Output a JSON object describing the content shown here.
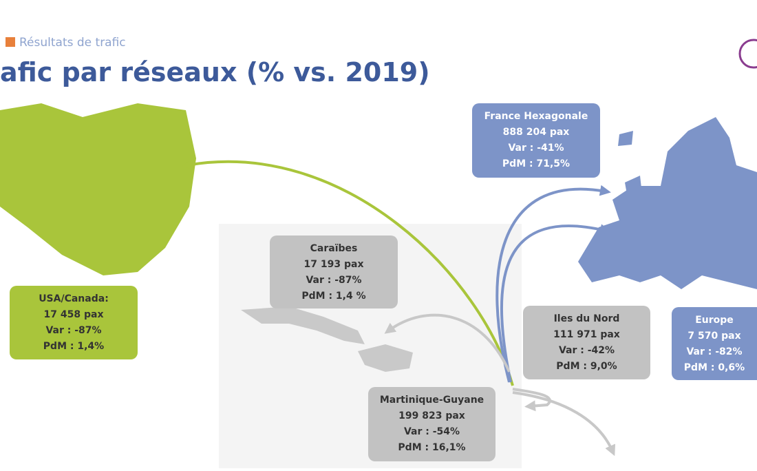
{
  "header": {
    "section": "Résultats de trafic",
    "title": "afic par réseaux (% vs. 2019)"
  },
  "boxes": [
    {
      "lines": [
        "USA/Canada:",
        "17 458 pax",
        "Var : -87%",
        "PdM : 1,4%"
      ]
    },
    {
      "lines": [
        "Caraïbes",
        "17 193 pax",
        "Var : -87%",
        "PdM : 1,4 %"
      ]
    },
    {
      "lines": [
        "France Hexagonale",
        "888 204 pax",
        "Var : -41%",
        "PdM : 71,5%"
      ]
    },
    {
      "lines": [
        "Iles du Nord",
        "111 971 pax",
        "Var : -42%",
        "PdM : 9,0%"
      ]
    },
    {
      "lines": [
        "Martinique-Guyane",
        "199 823 pax",
        "Var : -54%",
        "PdM : 16,1%"
      ]
    },
    {
      "lines": [
        "Europe",
        "7 570 pax",
        "Var : -82%",
        "PdM : 0,6%"
      ]
    }
  ]
}
